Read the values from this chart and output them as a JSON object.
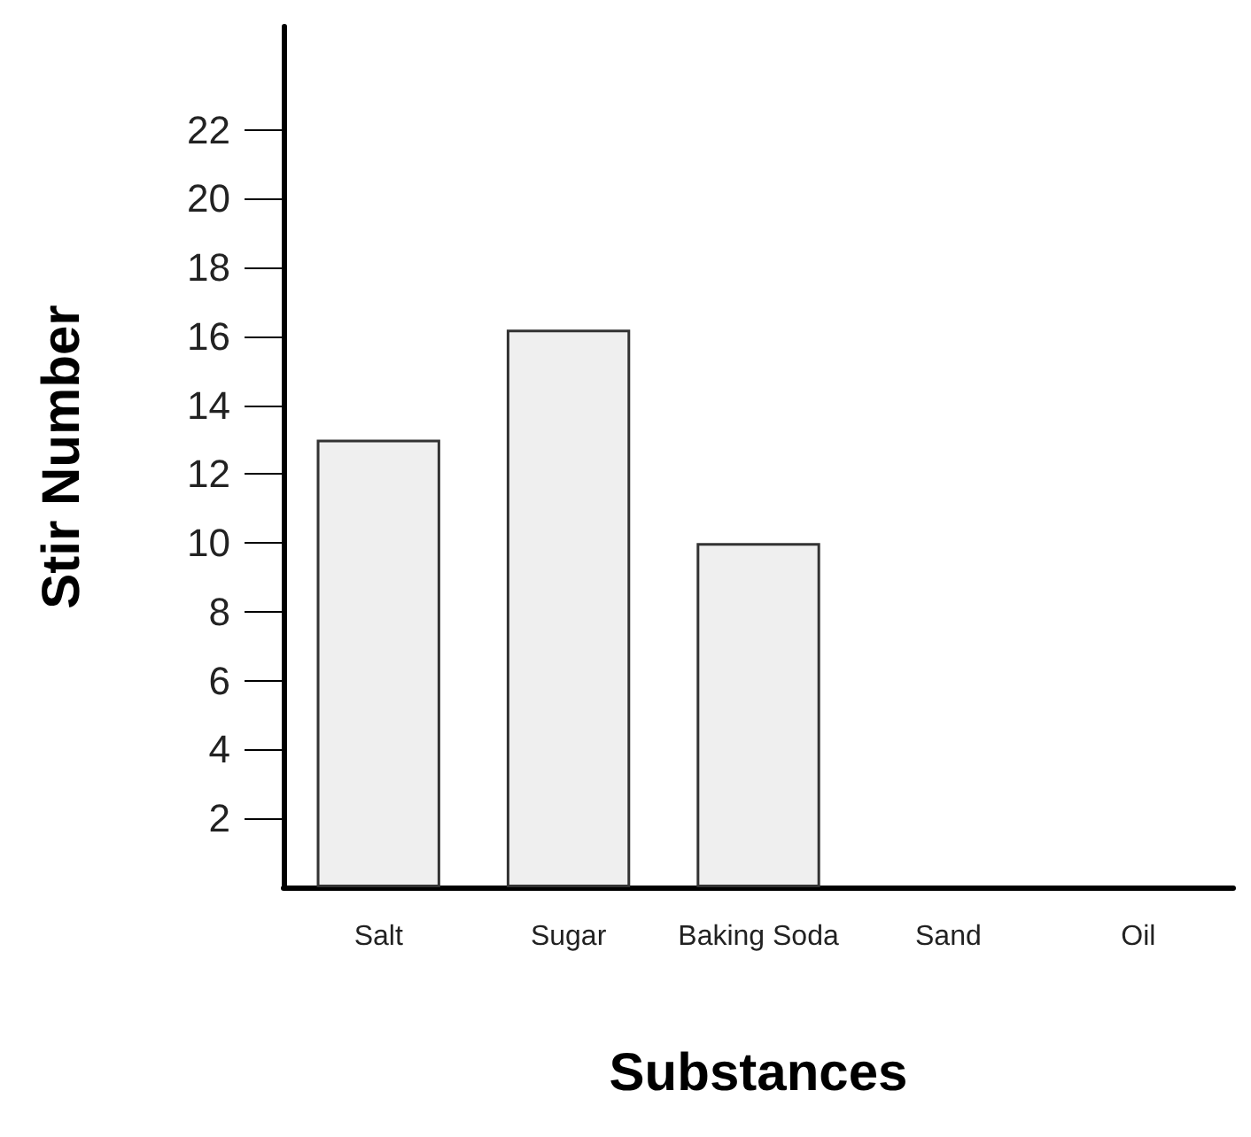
{
  "chart_data": {
    "type": "bar",
    "xlabel": "Substances",
    "ylabel": "Stir Number",
    "categories": [
      "Salt",
      "Sugar",
      "Baking Soda",
      "Sand",
      "Oil"
    ],
    "values": [
      13,
      16.2,
      10,
      0,
      0
    ],
    "color": "#efefef",
    "ylim": [
      0,
      25
    ],
    "yticks": [
      2,
      4,
      6,
      8,
      10,
      12,
      14,
      16,
      18,
      20,
      22
    ],
    "grid": false
  }
}
